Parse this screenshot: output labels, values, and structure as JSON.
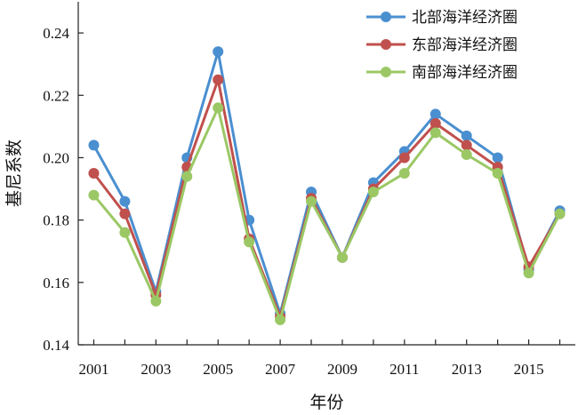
{
  "chart_data": {
    "type": "line",
    "xlabel": "年份",
    "ylabel": "基尼系数",
    "x": [
      2001,
      2002,
      2003,
      2004,
      2005,
      2006,
      2007,
      2008,
      2009,
      2010,
      2011,
      2012,
      2013,
      2014,
      2015,
      2016
    ],
    "x_tick_labels": [
      "2001",
      "2003",
      "2005",
      "2007",
      "2009",
      "2011",
      "2013",
      "2015"
    ],
    "y_ticks": [
      "0.14",
      "0.16",
      "0.18",
      "0.20",
      "0.22",
      "0.24"
    ],
    "xlim": [
      2000.5,
      2016.5
    ],
    "ylim": [
      0.14,
      0.25
    ],
    "grid": false,
    "legend_position": "top-right",
    "series": [
      {
        "name": "北部海洋经济圈",
        "color": "#4a8fd0",
        "values": [
          0.204,
          0.186,
          0.157,
          0.2,
          0.234,
          0.18,
          0.15,
          0.189,
          0.168,
          0.192,
          0.202,
          0.214,
          0.207,
          0.2,
          0.164,
          0.183
        ]
      },
      {
        "name": "东部海洋经济圈",
        "color": "#c0504d",
        "values": [
          0.195,
          0.182,
          0.156,
          0.197,
          0.225,
          0.174,
          0.149,
          0.187,
          0.168,
          0.19,
          0.2,
          0.211,
          0.204,
          0.197,
          0.165,
          0.182
        ]
      },
      {
        "name": "南部海洋经济圈",
        "color": "#9bc865",
        "values": [
          0.188,
          0.176,
          0.154,
          0.194,
          0.216,
          0.173,
          0.148,
          0.186,
          0.168,
          0.189,
          0.195,
          0.208,
          0.201,
          0.195,
          0.163,
          0.182
        ]
      }
    ]
  }
}
